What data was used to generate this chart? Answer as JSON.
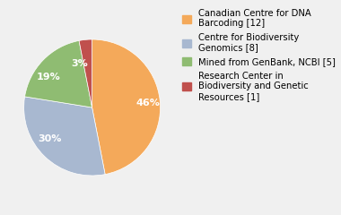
{
  "slices": [
    46,
    30,
    19,
    3
  ],
  "labels": [
    "46%",
    "30%",
    "19%",
    "3%"
  ],
  "colors": [
    "#F4A95A",
    "#A8B8D0",
    "#8FBC72",
    "#C0504D"
  ],
  "legend_labels": [
    "Canadian Centre for DNA\nBarcoding [12]",
    "Centre for Biodiversity\nGenomics [8]",
    "Mined from GenBank, NCBI [5]",
    "Research Center in\nBiodiversity and Genetic\nResources [1]"
  ],
  "startangle": 90,
  "text_color": "white",
  "font_size": 8,
  "legend_font_size": 7.2,
  "background_color": "#f0f0f0"
}
